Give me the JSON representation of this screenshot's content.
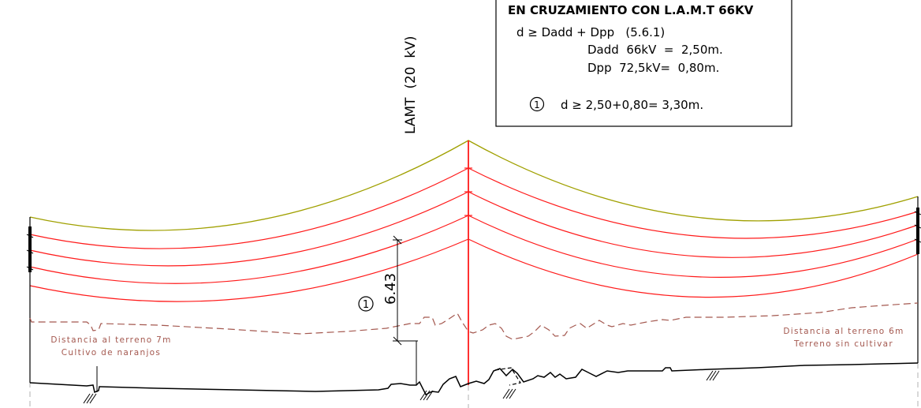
{
  "note": {
    "title": "EN CRUZAMIENTO CON L.A.M.T 66KV",
    "line1": "d ≥ Dadd + Dpp   (5.6.1)",
    "line2": "Dadd  66kV  =  2,50m.",
    "line3": "Dpp  72,5kV=  0,80m.",
    "line4_marker": "①",
    "line4": "d ≥ 2,50+0,80= 3,30m."
  },
  "crossing_line_label": "LAMT  (20  kV)",
  "dimension": {
    "marker": "①",
    "value": "6.43"
  },
  "terrain_left": {
    "line1": "Distancia al terreno 7m",
    "line2": "Cultivo de naranjos"
  },
  "terrain_right": {
    "line1": "Distancia al terreno 6m",
    "line2": "Terreno sin cultivar"
  },
  "colors": {
    "conductor": "#ff1a1a",
    "crossing_line": "#a0a000",
    "clearance_profile": "#a4584f",
    "ground": "#000000",
    "axis": "#b0b0b0",
    "note_border": "#000000"
  }
}
